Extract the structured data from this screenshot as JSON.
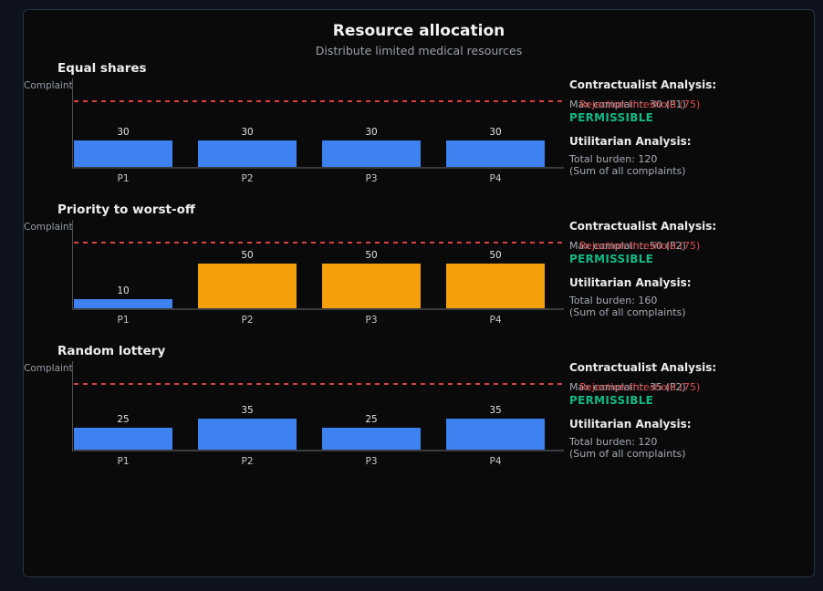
{
  "header": {
    "title": "Resource allocation",
    "subtitle": "Distribute limited medical resources"
  },
  "y_axis_label": "Complaint",
  "threshold": {
    "value": 75,
    "label": "Rejection threshold (75)"
  },
  "colors": {
    "blue": "#3d82f0",
    "orange": "#f5a00b",
    "red": "#de4b4b",
    "green": "#12b886"
  },
  "chart_data": [
    {
      "type": "bar",
      "title": "Equal shares",
      "categories": [
        "P1",
        "P2",
        "P3",
        "P4"
      ],
      "values": [
        30,
        30,
        30,
        30
      ],
      "bar_colors": [
        "blue",
        "blue",
        "blue",
        "blue"
      ],
      "ylabel": "Complaint",
      "ylim": [
        0,
        100
      ],
      "threshold": 75,
      "annotations": {
        "contractualist_heading": "Contractualist Analysis:",
        "max_complaint": "Max complaint: 30 (P1)",
        "verdict": "PERMISSIBLE",
        "utilitarian_heading": "Utilitarian Analysis:",
        "total_burden": "Total burden: 120",
        "note": "(Sum of all complaints)"
      }
    },
    {
      "type": "bar",
      "title": "Priority to worst-off",
      "categories": [
        "P1",
        "P2",
        "P3",
        "P4"
      ],
      "values": [
        10,
        50,
        50,
        50
      ],
      "bar_colors": [
        "blue",
        "orange",
        "orange",
        "orange"
      ],
      "ylabel": "Complaint",
      "ylim": [
        0,
        100
      ],
      "threshold": 75,
      "annotations": {
        "contractualist_heading": "Contractualist Analysis:",
        "max_complaint": "Max complaint: 50 (P2)",
        "verdict": "PERMISSIBLE",
        "utilitarian_heading": "Utilitarian Analysis:",
        "total_burden": "Total burden: 160",
        "note": "(Sum of all complaints)"
      }
    },
    {
      "type": "bar",
      "title": "Random lottery",
      "categories": [
        "P1",
        "P2",
        "P3",
        "P4"
      ],
      "values": [
        25,
        35,
        25,
        35
      ],
      "bar_colors": [
        "blue",
        "blue",
        "blue",
        "blue"
      ],
      "ylabel": "Complaint",
      "ylim": [
        0,
        100
      ],
      "threshold": 75,
      "annotations": {
        "contractualist_heading": "Contractualist Analysis:",
        "max_complaint": "Max complaint: 35 (P2)",
        "verdict": "PERMISSIBLE",
        "utilitarian_heading": "Utilitarian Analysis:",
        "total_burden": "Total burden: 120",
        "note": "(Sum of all complaints)"
      }
    }
  ]
}
